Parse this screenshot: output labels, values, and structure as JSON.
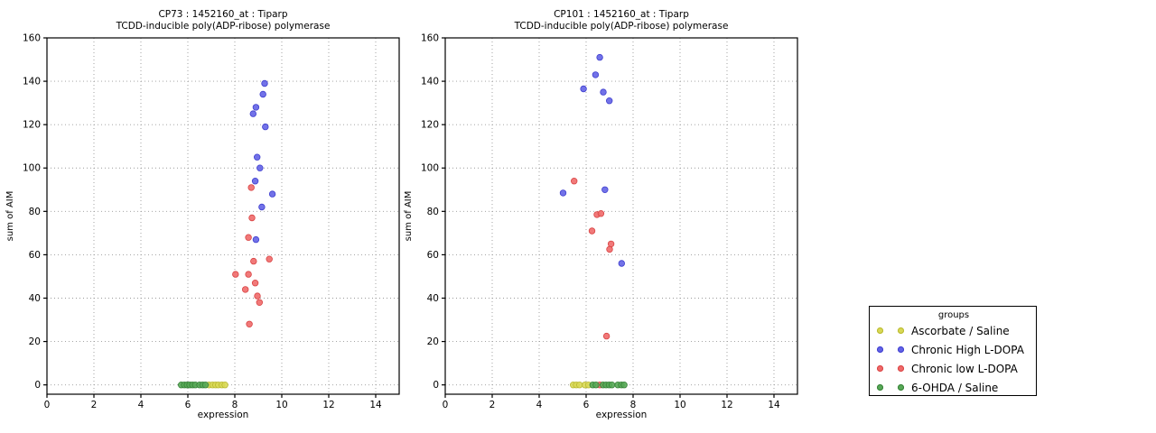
{
  "colors": {
    "yellow": {
      "fill": "#d8d855",
      "stroke": "#b9b92f"
    },
    "blue": {
      "fill": "#6363e6",
      "stroke": "#4040cf"
    },
    "red": {
      "fill": "#ef6a6a",
      "stroke": "#d94444"
    },
    "green": {
      "fill": "#57a857",
      "stroke": "#358035"
    }
  },
  "legend": {
    "title": "groups",
    "entries": [
      {
        "label": "Ascorbate / Saline",
        "color": "yellow"
      },
      {
        "label": "Chronic High L-DOPA",
        "color": "blue"
      },
      {
        "label": "Chronic low L-DOPA",
        "color": "red"
      },
      {
        "label": "6-OHDA / Saline",
        "color": "green"
      }
    ]
  },
  "chart_data": [
    {
      "type": "scatter",
      "title_line1": "CP73 : 1452160_at : Tiparp",
      "title_line2": "TCDD-inducible poly(ADP-ribose) polymerase",
      "xlabel": "expression",
      "ylabel": "sum of AIM",
      "xlim": [
        0,
        15
      ],
      "ylim": [
        -4.3,
        160
      ],
      "xticks": [
        0,
        2,
        4,
        6,
        8,
        10,
        12,
        14
      ],
      "yticks": [
        0,
        20,
        40,
        60,
        80,
        100,
        120,
        140,
        160
      ],
      "grid": true,
      "series": [
        {
          "name": "Ascorbate / Saline",
          "color": "yellow",
          "points": [
            [
              6.9,
              0
            ],
            [
              7.05,
              0
            ],
            [
              7.18,
              0
            ],
            [
              7.3,
              0
            ],
            [
              7.45,
              0
            ],
            [
              7.58,
              0
            ]
          ]
        },
        {
          "name": "Chronic High L-DOPA",
          "color": "blue",
          "points": [
            [
              9.27,
              139
            ],
            [
              9.2,
              134
            ],
            [
              8.9,
              128
            ],
            [
              8.78,
              125
            ],
            [
              9.3,
              119
            ],
            [
              8.95,
              105
            ],
            [
              9.07,
              100
            ],
            [
              8.87,
              94
            ],
            [
              9.6,
              88
            ],
            [
              9.15,
              82
            ],
            [
              8.9,
              67
            ]
          ]
        },
        {
          "name": "Chronic low L-DOPA",
          "color": "red",
          "points": [
            [
              8.7,
              91
            ],
            [
              8.73,
              77
            ],
            [
              8.58,
              68
            ],
            [
              9.47,
              58
            ],
            [
              8.8,
              57
            ],
            [
              8.03,
              51
            ],
            [
              8.58,
              51
            ],
            [
              8.87,
              47
            ],
            [
              8.45,
              44
            ],
            [
              8.96,
              41
            ],
            [
              9.05,
              38
            ],
            [
              8.62,
              28
            ]
          ]
        },
        {
          "name": "6-OHDA / Saline",
          "color": "green",
          "points": [
            [
              5.72,
              0
            ],
            [
              5.85,
              0
            ],
            [
              5.97,
              0
            ],
            [
              6.08,
              0
            ],
            [
              6.2,
              0
            ],
            [
              6.32,
              0
            ],
            [
              6.5,
              0
            ],
            [
              6.63,
              0
            ],
            [
              6.75,
              0
            ]
          ]
        }
      ]
    },
    {
      "type": "scatter",
      "title_line1": "CP101 : 1452160_at : Tiparp",
      "title_line2": "TCDD-inducible poly(ADP-ribose) polymerase",
      "xlabel": "expression",
      "ylabel": "sum of AIM",
      "xlim": [
        0,
        15
      ],
      "ylim": [
        -4.3,
        160
      ],
      "xticks": [
        0,
        2,
        4,
        6,
        8,
        10,
        12,
        14
      ],
      "yticks": [
        0,
        20,
        40,
        60,
        80,
        100,
        120,
        140,
        160
      ],
      "grid": true,
      "series": [
        {
          "name": "Ascorbate / Saline",
          "color": "yellow",
          "points": [
            [
              5.45,
              0
            ],
            [
              5.58,
              0
            ],
            [
              5.72,
              0
            ],
            [
              5.95,
              0
            ],
            [
              6.1,
              0
            ]
          ]
        },
        {
          "name": "Chronic High L-DOPA",
          "color": "blue",
          "points": [
            [
              6.58,
              151
            ],
            [
              6.4,
              143
            ],
            [
              5.89,
              136.5
            ],
            [
              6.73,
              135
            ],
            [
              6.99,
              131
            ],
            [
              6.8,
              90
            ],
            [
              5.02,
              88.5
            ],
            [
              7.51,
              56
            ]
          ]
        },
        {
          "name": "Chronic low L-DOPA",
          "color": "red",
          "points": [
            [
              5.49,
              94
            ],
            [
              6.46,
              78.5
            ],
            [
              6.63,
              79
            ],
            [
              6.25,
              71
            ],
            [
              7.06,
              65
            ],
            [
              7.0,
              62.5
            ],
            [
              6.87,
              22.5
            ],
            [
              6.58,
              0
            ]
          ]
        },
        {
          "name": "6-OHDA / Saline",
          "color": "green",
          "points": [
            [
              6.28,
              0
            ],
            [
              6.42,
              0
            ],
            [
              6.72,
              0
            ],
            [
              6.85,
              0
            ],
            [
              6.98,
              0
            ],
            [
              7.1,
              0
            ],
            [
              7.35,
              0
            ],
            [
              7.5,
              0
            ],
            [
              7.62,
              0
            ]
          ]
        }
      ]
    }
  ]
}
